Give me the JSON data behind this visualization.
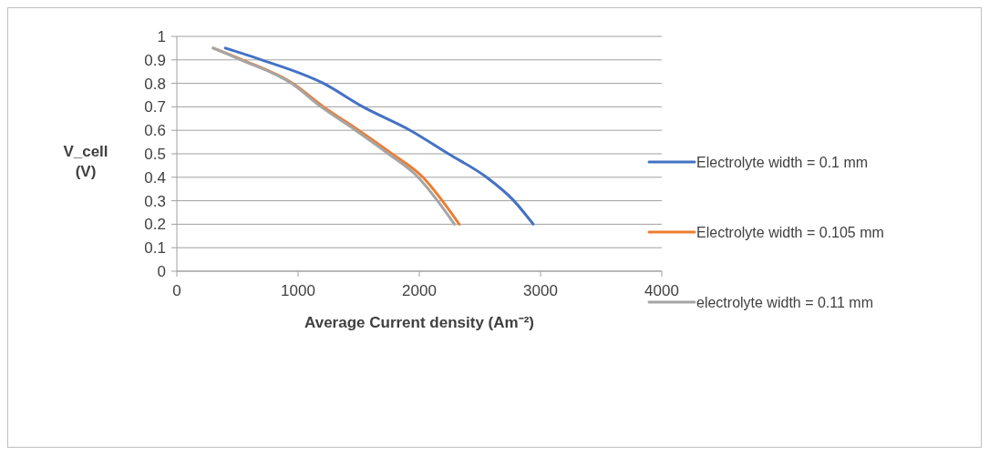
{
  "chart_data": {
    "type": "line",
    "xlabel": "Average Current density (Am⁻²)",
    "ylabel": "V_cell (V)",
    "xlim": [
      0,
      4000
    ],
    "xticks": [
      0,
      1000,
      2000,
      3000,
      4000
    ],
    "ylim": [
      0,
      1
    ],
    "yticks": [
      0,
      0.1,
      0.2,
      0.3,
      0.4,
      0.5,
      0.6,
      0.7,
      0.8,
      0.9,
      1
    ],
    "grid": "y",
    "legend": "right",
    "marker": "none",
    "line_style": "solid",
    "series": [
      {
        "name": "Electrolyte width = 0.1 mm",
        "color": "#4472c4",
        "x": [
          400,
          700,
          1210,
          1535,
          1925,
          2240,
          2555,
          2780,
          2940
        ],
        "values": [
          0.95,
          0.9,
          0.8,
          0.7,
          0.6,
          0.5,
          0.4,
          0.3,
          0.2
        ]
      },
      {
        "name": "Electrolyte width = 0.105 mm",
        "color": "#ed7d31",
        "x": [
          300,
          540,
          955,
          1210,
          1500,
          1775,
          2030,
          2190,
          2330
        ],
        "values": [
          0.95,
          0.9,
          0.8,
          0.7,
          0.6,
          0.5,
          0.4,
          0.3,
          0.2
        ]
      },
      {
        "name": "electrolyte width = 0.11 mm",
        "color": "#a5a5a5",
        "x": [
          300,
          530,
          945,
          1190,
          1475,
          1745,
          1990,
          2150,
          2290
        ],
        "values": [
          0.95,
          0.9,
          0.8,
          0.7,
          0.6,
          0.5,
          0.4,
          0.3,
          0.2
        ]
      }
    ]
  }
}
